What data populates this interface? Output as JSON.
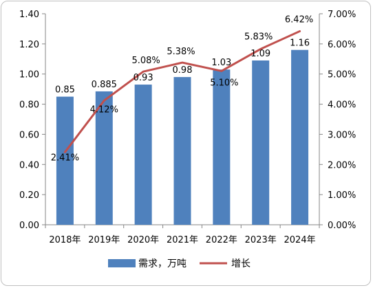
{
  "chart_data": {
    "type": "bar",
    "categories": [
      "2018年",
      "2019年",
      "2020年",
      "2021年",
      "2022年",
      "2023年",
      "2024年"
    ],
    "series": [
      {
        "name": "需求，万吨",
        "type": "bar",
        "axis": "left",
        "color": "#4f81bd",
        "values": [
          0.85,
          0.885,
          0.93,
          0.98,
          1.03,
          1.09,
          1.16
        ],
        "labels": [
          "0.85",
          "0.885",
          "0.93",
          "0.98",
          "1.03",
          "1.09",
          "1.16"
        ]
      },
      {
        "name": "增长",
        "type": "line",
        "axis": "right",
        "color": "#c0504d",
        "values": [
          2.41,
          4.12,
          5.08,
          5.38,
          5.1,
          5.83,
          6.42
        ],
        "labels": [
          "2.41%",
          "4.12%",
          "5.08%",
          "5.38%",
          "5.10%",
          "5.83%",
          "6.42%"
        ]
      }
    ],
    "y_left": {
      "ylim": [
        0,
        1.4
      ],
      "ticks": [
        "0.00",
        "0.20",
        "0.40",
        "0.60",
        "0.80",
        "1.00",
        "1.20",
        "1.40"
      ]
    },
    "y_right": {
      "ylim": [
        0,
        7
      ],
      "ticks": [
        "0.00%",
        "1.00%",
        "2.00%",
        "3.00%",
        "4.00%",
        "5.00%",
        "6.00%",
        "7.00%"
      ]
    },
    "grid": false,
    "legend": "bottom"
  }
}
